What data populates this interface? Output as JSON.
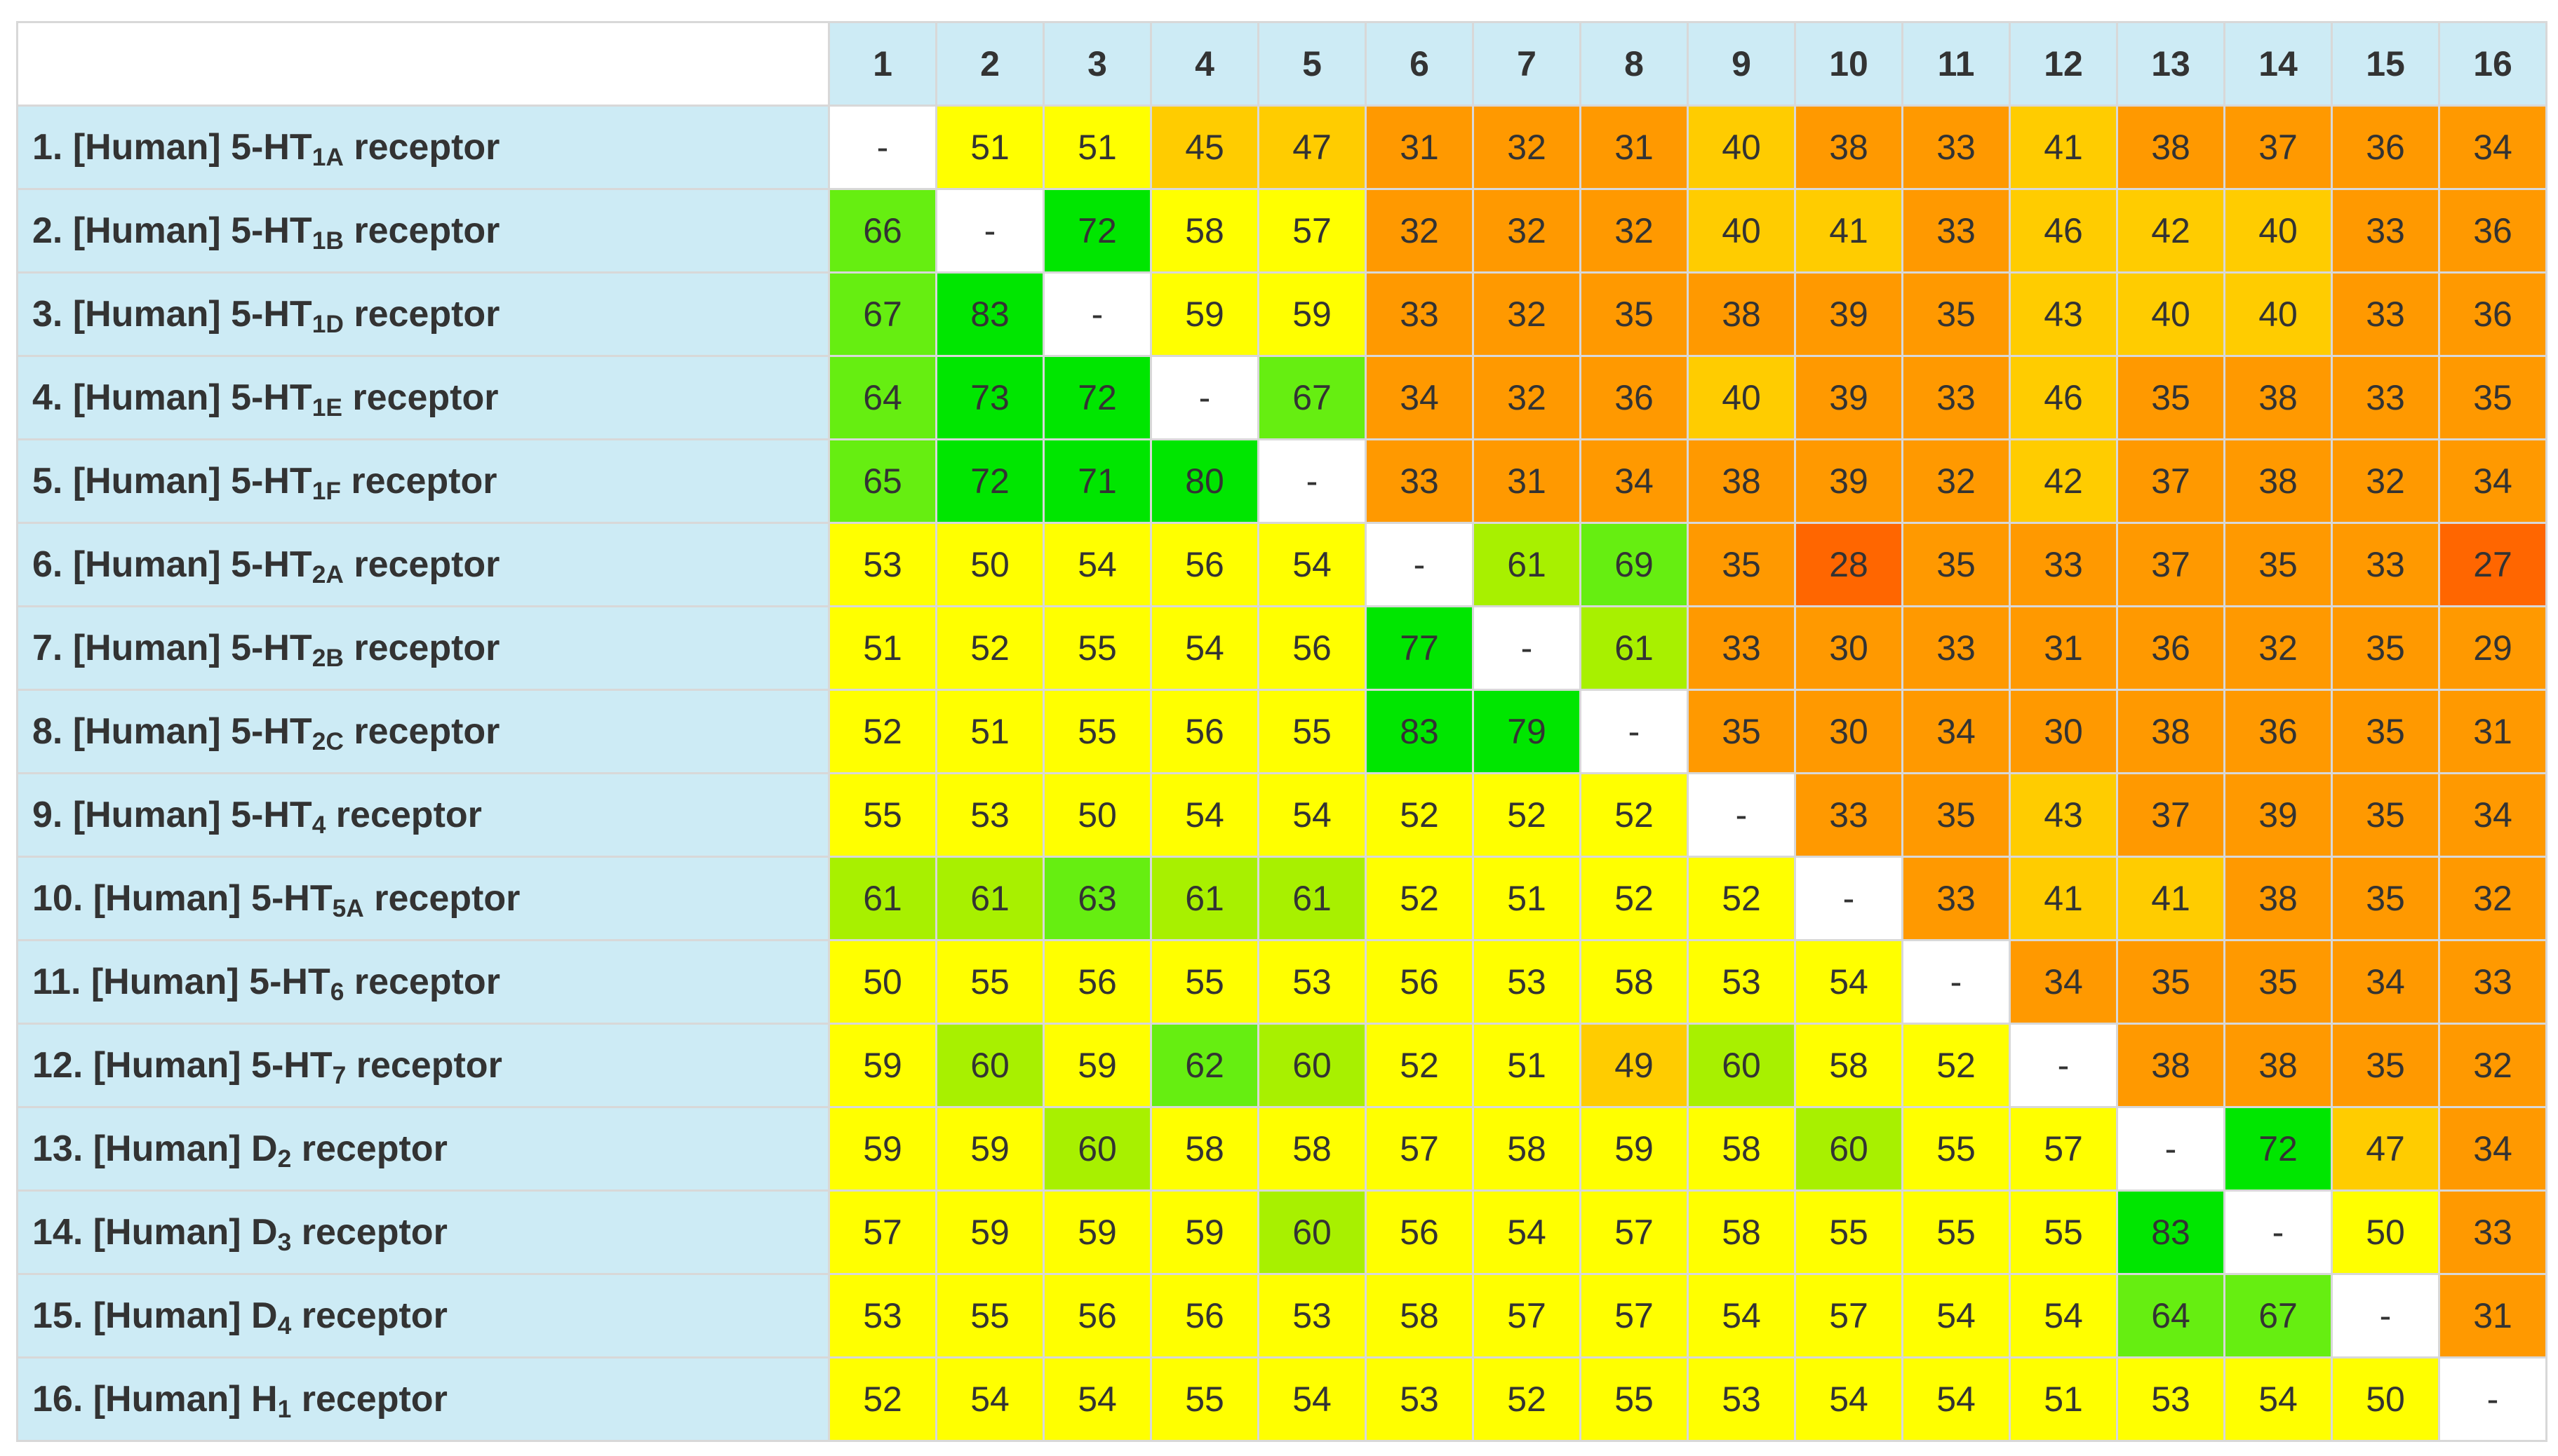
{
  "chart_data": {
    "type": "heatmap",
    "title": "",
    "diagonal_label": "-",
    "columns": [
      "1",
      "2",
      "3",
      "4",
      "5",
      "6",
      "7",
      "8",
      "9",
      "10",
      "11",
      "12",
      "13",
      "14",
      "15",
      "16"
    ],
    "rows": [
      {
        "prefix": "1. [Human] 5-HT",
        "sub": "1A",
        "suffix": " receptor"
      },
      {
        "prefix": "2. [Human] 5-HT",
        "sub": "1B",
        "suffix": " receptor"
      },
      {
        "prefix": "3. [Human] 5-HT",
        "sub": "1D",
        "suffix": " receptor"
      },
      {
        "prefix": "4. [Human] 5-HT",
        "sub": "1E",
        "suffix": " receptor"
      },
      {
        "prefix": "5. [Human] 5-HT",
        "sub": "1F",
        "suffix": " receptor"
      },
      {
        "prefix": "6. [Human] 5-HT",
        "sub": "2A",
        "suffix": " receptor"
      },
      {
        "prefix": "7. [Human] 5-HT",
        "sub": "2B",
        "suffix": " receptor"
      },
      {
        "prefix": "8. [Human] 5-HT",
        "sub": "2C",
        "suffix": " receptor"
      },
      {
        "prefix": "9. [Human] 5-HT",
        "sub": "4",
        "suffix": " receptor"
      },
      {
        "prefix": "10. [Human] 5-HT",
        "sub": "5A",
        "suffix": " receptor"
      },
      {
        "prefix": "11. [Human] 5-HT",
        "sub": "6",
        "suffix": " receptor"
      },
      {
        "prefix": "12. [Human] 5-HT",
        "sub": "7",
        "suffix": " receptor"
      },
      {
        "prefix": "13. [Human] D",
        "sub": "2",
        "suffix": " receptor"
      },
      {
        "prefix": "14. [Human] D",
        "sub": "3",
        "suffix": " receptor"
      },
      {
        "prefix": "15. [Human] D",
        "sub": "4",
        "suffix": " receptor"
      },
      {
        "prefix": "16. [Human] H",
        "sub": "1",
        "suffix": " receptor"
      }
    ],
    "values": [
      [
        null,
        51,
        51,
        45,
        47,
        31,
        32,
        31,
        40,
        38,
        33,
        41,
        38,
        37,
        36,
        34
      ],
      [
        66,
        null,
        72,
        58,
        57,
        32,
        32,
        32,
        40,
        41,
        33,
        46,
        42,
        40,
        33,
        36
      ],
      [
        67,
        83,
        null,
        59,
        59,
        33,
        32,
        35,
        38,
        39,
        35,
        43,
        40,
        40,
        33,
        36
      ],
      [
        64,
        73,
        72,
        null,
        67,
        34,
        32,
        36,
        40,
        39,
        33,
        46,
        35,
        38,
        33,
        35
      ],
      [
        65,
        72,
        71,
        80,
        null,
        33,
        31,
        34,
        38,
        39,
        32,
        42,
        37,
        38,
        32,
        34
      ],
      [
        53,
        50,
        54,
        56,
        54,
        null,
        61,
        69,
        35,
        28,
        35,
        33,
        37,
        35,
        33,
        27
      ],
      [
        51,
        52,
        55,
        54,
        56,
        77,
        null,
        61,
        33,
        30,
        33,
        31,
        36,
        32,
        35,
        29
      ],
      [
        52,
        51,
        55,
        56,
        55,
        83,
        79,
        null,
        35,
        30,
        34,
        30,
        38,
        36,
        35,
        31
      ],
      [
        55,
        53,
        50,
        54,
        54,
        52,
        52,
        52,
        null,
        33,
        35,
        43,
        37,
        39,
        35,
        34
      ],
      [
        61,
        61,
        63,
        61,
        61,
        52,
        51,
        52,
        52,
        null,
        33,
        41,
        41,
        38,
        35,
        32
      ],
      [
        50,
        55,
        56,
        55,
        53,
        56,
        53,
        58,
        53,
        54,
        null,
        34,
        35,
        35,
        34,
        33
      ],
      [
        59,
        60,
        59,
        62,
        60,
        52,
        51,
        49,
        60,
        58,
        52,
        null,
        38,
        38,
        35,
        32
      ],
      [
        59,
        59,
        60,
        58,
        58,
        57,
        58,
        59,
        58,
        60,
        55,
        57,
        null,
        72,
        47,
        34
      ],
      [
        57,
        59,
        59,
        59,
        60,
        56,
        54,
        57,
        58,
        55,
        55,
        55,
        83,
        null,
        50,
        33
      ],
      [
        53,
        55,
        56,
        56,
        53,
        58,
        57,
        57,
        54,
        57,
        54,
        54,
        64,
        67,
        null,
        31
      ],
      [
        52,
        54,
        54,
        55,
        54,
        53,
        52,
        55,
        53,
        54,
        54,
        51,
        53,
        54,
        50,
        null
      ]
    ],
    "colors": {
      "header_bg": "#cdebf5",
      "diagonal": "#ffffff",
      "green_bright": "#00e600",
      "green": "#66ee11",
      "lime": "#a8f000",
      "yellow": "#ffff00",
      "gold": "#ffcc00",
      "orange": "#ff9900",
      "dark_orange": "#ff6600"
    }
  }
}
